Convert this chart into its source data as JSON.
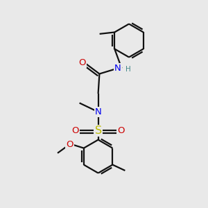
{
  "bg_color": "#e9e9e9",
  "bond_color": "#111111",
  "bond_width": 1.6,
  "atom_colors": {
    "N": "#0000ee",
    "O": "#cc0000",
    "S": "#bbbb00",
    "H": "#448888"
  },
  "font_size": 8.5,
  "fig_size": [
    3.0,
    3.0
  ],
  "dpi": 100,
  "xlim": [
    0,
    10
  ],
  "ylim": [
    0,
    10
  ]
}
